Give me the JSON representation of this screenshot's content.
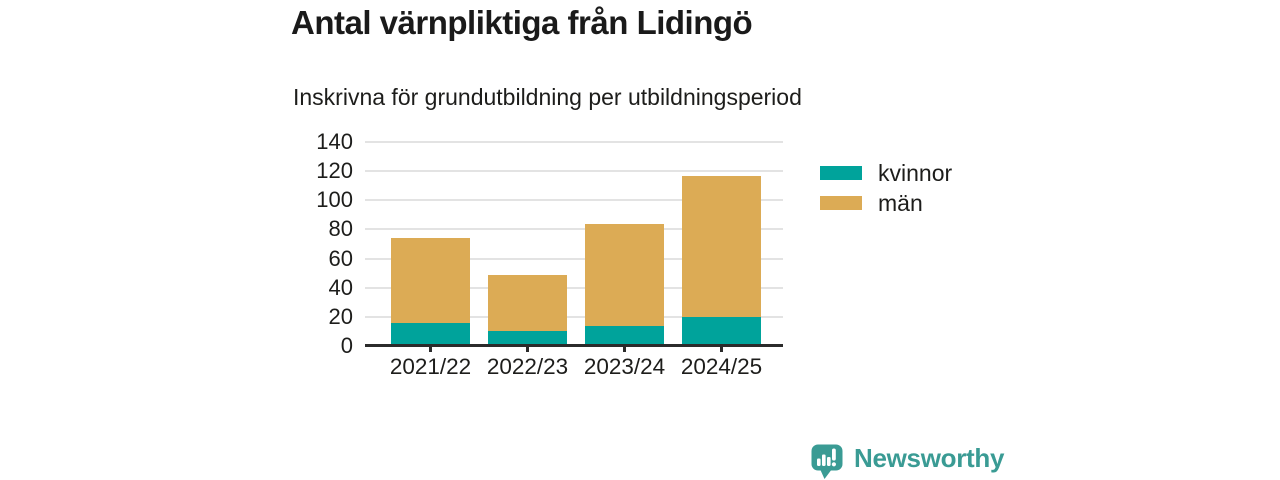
{
  "header": {
    "title": "Antal värnpliktiga från Lidingö",
    "subtitle": "Inskrivna för grundutbildning per utbildningsperiod"
  },
  "chart_data": {
    "type": "bar",
    "stacked": true,
    "title": "Antal värnpliktiga från Lidingö",
    "subtitle": "Inskrivna för grundutbildning per utbildningsperiod",
    "xlabel": "",
    "ylabel": "",
    "categories": [
      "2021/22",
      "2022/23",
      "2023/24",
      "2024/25"
    ],
    "series": [
      {
        "name": "kvinnor",
        "color": "#00a39b",
        "values": [
          16,
          10,
          14,
          20
        ]
      },
      {
        "name": "män",
        "color": "#dcab55",
        "values": [
          58,
          39,
          70,
          97
        ]
      }
    ],
    "stack_totals": [
      74,
      49,
      84,
      117
    ],
    "ylim": [
      0,
      140
    ],
    "yticks": [
      0,
      20,
      40,
      60,
      80,
      100,
      120,
      140
    ],
    "grid": true,
    "legend_position": "right"
  },
  "legend": {
    "items": [
      {
        "label": "kvinnor",
        "color": "#00a39b"
      },
      {
        "label": "män",
        "color": "#dcab55"
      }
    ]
  },
  "branding": {
    "logo_text": "Newsworthy",
    "logo_color": "#3a9b94"
  },
  "colors": {
    "axis": "#2b2b2b",
    "grid": "#e3e3e3",
    "title_text": "#1a1a1a",
    "tick_text": "#1d1d1b"
  }
}
